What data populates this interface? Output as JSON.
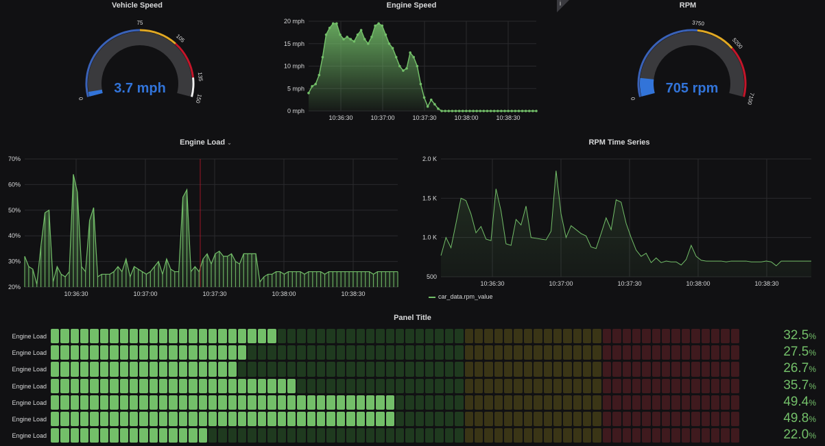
{
  "panels": {
    "vehicle_speed": {
      "title": "Vehicle Speed",
      "value": "3.7 mph",
      "min": "0",
      "max": "150",
      "thresholds": [
        "75",
        "105",
        "135"
      ],
      "fraction": 0.025,
      "color": "#3274d9"
    },
    "engine_speed": {
      "title": "Engine Speed"
    },
    "rpm": {
      "title": "RPM",
      "value": "705 rpm",
      "min": "0",
      "max": "7100",
      "thresholds": [
        "3750",
        "5200"
      ],
      "fraction": 0.099,
      "color": "#3274d9"
    },
    "engine_load": {
      "title": "Engine Load",
      "dropdown_icon": "chevron-down-icon"
    },
    "rpm_ts": {
      "title": "RPM Time Series",
      "legend": "car_data.rpm_value"
    },
    "bar_gauge": {
      "title": "Panel Title"
    }
  },
  "chart_data": [
    {
      "type": "area",
      "title": "Engine Speed",
      "yticks": [
        "0 mph",
        "5 mph",
        "10 mph",
        "15 mph",
        "20 mph"
      ],
      "xticks": [
        "10:36:30",
        "10:37:00",
        "10:37:30",
        "10:38:00",
        "10:38:30"
      ],
      "ylim": [
        0,
        20
      ],
      "series": [
        {
          "values": [
            4,
            5.5,
            6,
            8,
            12,
            17,
            18.5,
            19.5,
            19.5,
            17,
            16,
            16.5,
            16,
            15.5,
            17,
            18,
            16,
            15,
            16.5,
            19,
            19.5,
            19,
            17,
            15,
            14,
            12,
            10,
            9,
            9.5,
            13,
            12,
            10,
            6,
            3,
            1,
            2.5,
            1.5,
            0.5,
            0,
            0,
            0,
            0,
            0,
            0,
            0,
            0,
            0,
            0,
            0,
            0,
            0,
            0,
            0,
            0,
            0,
            0,
            0,
            0,
            0,
            0,
            0,
            0,
            0,
            0,
            0,
            0
          ]
        }
      ]
    },
    {
      "type": "area",
      "title": "Engine Load",
      "yticks": [
        "20%",
        "30%",
        "40%",
        "50%",
        "60%",
        "70%"
      ],
      "xticks": [
        "10:36:30",
        "10:37:00",
        "10:37:30",
        "10:38:00",
        "10:38:30"
      ],
      "ylim": [
        20,
        70
      ],
      "series": [
        {
          "values": [
            32,
            28,
            27,
            21,
            36,
            49,
            50,
            22,
            28,
            25,
            24,
            26,
            64,
            57,
            28,
            26,
            46,
            51,
            24,
            25,
            25,
            25,
            26,
            28,
            26,
            31,
            24,
            28,
            27,
            26,
            25,
            26,
            28,
            30,
            25,
            31,
            27,
            26,
            26,
            55,
            58,
            26,
            28,
            26,
            31,
            33,
            29,
            33,
            34,
            32,
            32,
            33,
            30,
            29,
            33,
            33,
            33,
            33,
            22,
            24,
            25,
            25,
            26,
            26,
            25,
            26,
            26,
            26,
            26,
            25,
            26,
            26,
            26,
            26,
            25,
            26,
            26,
            26,
            26,
            26,
            26,
            26,
            26,
            26,
            26,
            26,
            25,
            26,
            26,
            26,
            26,
            26,
            26
          ]
        }
      ]
    },
    {
      "type": "line",
      "title": "RPM Time Series",
      "yticks": [
        "500",
        "1.0 K",
        "1.5 K",
        "2.0 K"
      ],
      "xticks": [
        "10:36:30",
        "10:37:00",
        "10:37:30",
        "10:38:00",
        "10:38:30"
      ],
      "ylim": [
        500,
        2000
      ],
      "series": [
        {
          "name": "car_data.rpm_value",
          "values": [
            770,
            1000,
            870,
            1180,
            1500,
            1470,
            1300,
            1060,
            1140,
            980,
            960,
            1620,
            1340,
            920,
            900,
            1230,
            1160,
            1400,
            1000,
            990,
            980,
            970,
            1080,
            1850,
            1300,
            1000,
            1150,
            1100,
            1050,
            1020,
            880,
            860,
            1050,
            1250,
            1100,
            1480,
            1450,
            1180,
            1000,
            840,
            760,
            800,
            680,
            740,
            680,
            700,
            690,
            690,
            650,
            720,
            900,
            760,
            710,
            700,
            700,
            700,
            700,
            690,
            700,
            700,
            700,
            700,
            690,
            690,
            690,
            700,
            690,
            640,
            700,
            700,
            700,
            700,
            700,
            700,
            700
          ]
        }
      ]
    },
    {
      "type": "bar",
      "title": "Panel Title",
      "orientation": "horizontal",
      "unit": "%",
      "categories": [
        "Engine Load",
        "Engine Load",
        "Engine Load",
        "Engine Load",
        "Engine Load",
        "Engine Load",
        "Engine Load"
      ],
      "values": [
        32.5,
        27.5,
        26.7,
        35.7,
        49.4,
        49.8,
        22.0
      ],
      "labels": [
        "32.5",
        "27.5",
        "26.7",
        "35.7",
        "49.4",
        "49.8",
        "22.0"
      ]
    }
  ]
}
